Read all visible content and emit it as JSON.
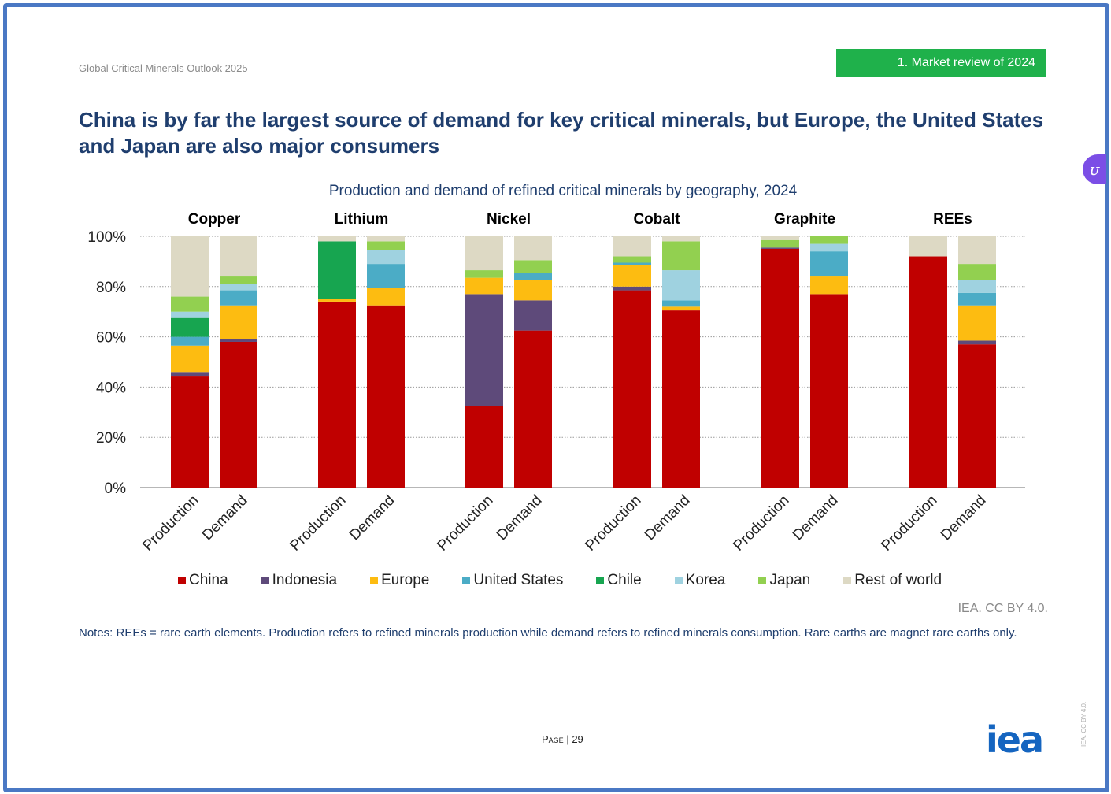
{
  "header": {
    "report_title": "Global Critical Minerals Outlook 2025",
    "section_badge": "1. Market review of 2024"
  },
  "slide": {
    "title": "China is by far the largest source of demand for key critical minerals, but Europe, the United States and Japan are also major consumers"
  },
  "colors": {
    "China": "#c00000",
    "Indonesia": "#5e4a7a",
    "Europe": "#fdbc11",
    "United States": "#4bacc6",
    "Chile": "#17a550",
    "Korea": "#9fd2e0",
    "Japan": "#92d050",
    "Rest of world": "#ddd9c4"
  },
  "chart_data": {
    "type": "bar",
    "stacked": true,
    "title": "Production and demand of refined critical minerals by geography, 2024",
    "ylim": [
      0,
      100
    ],
    "yticks": [
      "0%",
      "20%",
      "40%",
      "60%",
      "80%",
      "100%"
    ],
    "ytick_values": [
      0,
      20,
      40,
      60,
      80,
      100
    ],
    "grid": true,
    "legend_position": "bottom",
    "groups": [
      "Copper",
      "Lithium",
      "Nickel",
      "Cobalt",
      "Graphite",
      "REEs"
    ],
    "categories": [
      "Production",
      "Demand"
    ],
    "series_names": [
      "China",
      "Indonesia",
      "Europe",
      "United States",
      "Chile",
      "Korea",
      "Japan",
      "Rest of world"
    ],
    "values": {
      "Copper": {
        "Production": [
          44.5,
          1.5,
          10.5,
          3.5,
          7.5,
          2.5,
          6,
          24
        ],
        "Demand": [
          58,
          1,
          13.5,
          6,
          0,
          2.5,
          3,
          16
        ]
      },
      "Lithium": {
        "Production": [
          74,
          0,
          1,
          0,
          23,
          0,
          0,
          2
        ],
        "Demand": [
          72.5,
          0,
          7,
          9.5,
          0,
          5.5,
          3.5,
          2
        ]
      },
      "Nickel": {
        "Production": [
          32.5,
          44.5,
          6.5,
          0,
          0,
          0,
          3,
          13.5
        ],
        "Demand": [
          62.5,
          12,
          8,
          3,
          0,
          0,
          5,
          9.5
        ]
      },
      "Cobalt": {
        "Production": [
          78.5,
          1.5,
          8.5,
          1,
          0,
          0,
          2.5,
          8
        ],
        "Demand": [
          70.5,
          0,
          1.5,
          2.5,
          0,
          12,
          11.5,
          2
        ]
      },
      "Graphite": {
        "Production": [
          95,
          0.5,
          0,
          0,
          0,
          0,
          3,
          1.5
        ],
        "Demand": [
          77,
          0,
          7,
          10,
          0,
          3,
          3,
          0
        ]
      },
      "REEs": {
        "Production": [
          92,
          0,
          0,
          0,
          0,
          0,
          0,
          8
        ],
        "Demand": [
          57,
          1.5,
          14,
          5,
          0,
          5,
          6.5,
          11
        ]
      }
    }
  },
  "legend": {
    "items": [
      "China",
      "Indonesia",
      "Europe",
      "United States",
      "Chile",
      "Korea",
      "Japan",
      "Rest of world"
    ]
  },
  "credit": "IEA. CC BY 4.0.",
  "notes": "Notes: REEs = rare earth elements. Production refers to refined minerals production while demand refers to refined minerals consumption. Rare earths are magnet rare earths only.",
  "footer": {
    "page_label": "Page",
    "page_number": "29",
    "logo_text": "iea",
    "side_note": "IEA. CC BY 4.0."
  }
}
